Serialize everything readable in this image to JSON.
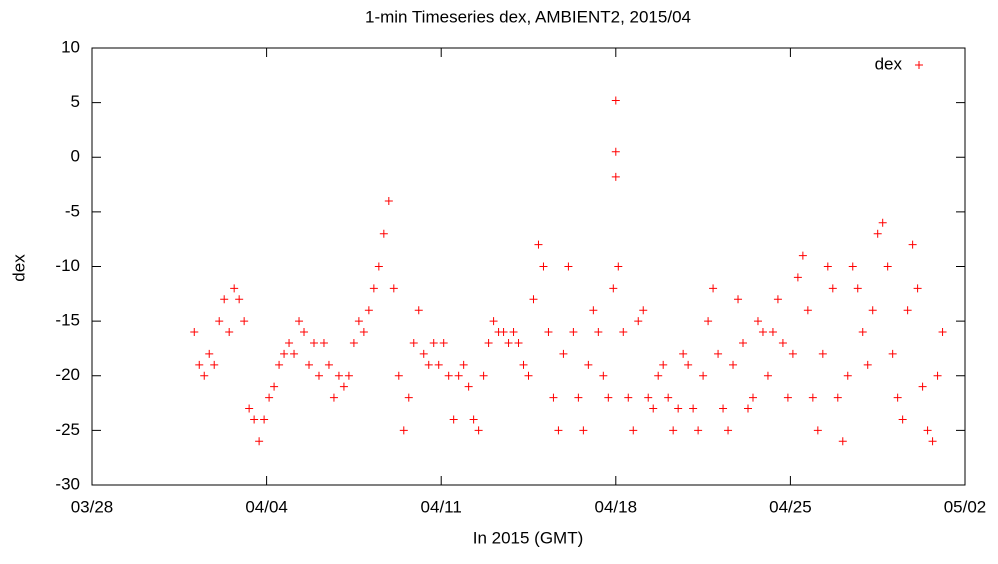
{
  "chart_data": {
    "type": "scatter",
    "title": "1-min Timeseries dex, AMBIENT2, 2015/04",
    "xlabel": "In 2015 (GMT)",
    "ylabel": "dex",
    "x": [
      4.1,
      4.3,
      4.5,
      4.7,
      4.9,
      5.1,
      5.3,
      5.5,
      5.7,
      5.9,
      6.1,
      6.3,
      6.5,
      6.7,
      6.9,
      7.1,
      7.3,
      7.5,
      7.7,
      7.9,
      8.1,
      8.3,
      8.5,
      8.7,
      8.9,
      9.1,
      9.3,
      9.5,
      9.7,
      9.9,
      10.1,
      10.3,
      10.5,
      10.7,
      10.9,
      11.1,
      11.3,
      11.5,
      11.7,
      11.9,
      12.1,
      12.3,
      12.5,
      12.7,
      12.9,
      13.1,
      13.3,
      13.5,
      13.7,
      13.9,
      14.1,
      14.3,
      14.5,
      14.7,
      14.9,
      15.1,
      15.3,
      15.5,
      15.7,
      15.9,
      16.1,
      16.3,
      16.5,
      16.7,
      16.9,
      17.1,
      17.3,
      17.5,
      17.7,
      17.9,
      18.1,
      18.3,
      18.5,
      18.7,
      18.9,
      19.1,
      19.3,
      19.5,
      19.7,
      19.9,
      20.1,
      20.3,
      20.5,
      20.7,
      20.9,
      21.0,
      21.0,
      21.0,
      21.1,
      21.3,
      21.5,
      21.7,
      21.9,
      22.1,
      22.3,
      22.5,
      22.7,
      22.9,
      23.1,
      23.3,
      23.5,
      23.7,
      23.9,
      24.1,
      24.3,
      24.5,
      24.7,
      24.9,
      25.1,
      25.3,
      25.5,
      25.7,
      25.9,
      26.1,
      26.3,
      26.5,
      26.7,
      26.9,
      27.1,
      27.3,
      27.5,
      27.7,
      27.9,
      28.1,
      28.3,
      28.5,
      28.7,
      28.9,
      29.1,
      29.3,
      29.5,
      29.7,
      29.9,
      30.1,
      30.3,
      30.5,
      30.7,
      30.9,
      31.1,
      31.3,
      31.5,
      31.7,
      31.9,
      32.1,
      32.3,
      32.5,
      32.7,
      32.9,
      33.1,
      33.3,
      33.5,
      33.7,
      33.9,
      34.1
    ],
    "series": [
      {
        "name": "dex",
        "color": "#ff0000",
        "values": [
          -16,
          -19,
          -20,
          -18,
          -19,
          -15,
          -13,
          -16,
          -12,
          -13,
          -15,
          -23,
          -24,
          -26,
          -24,
          -22,
          -21,
          -19,
          -18,
          -17,
          -18,
          -15,
          -16,
          -19,
          -17,
          -20,
          -17,
          -19,
          -22,
          -20,
          -21,
          -20,
          -17,
          -15,
          -16,
          -14,
          -12,
          -10,
          -7,
          -4,
          -12,
          -20,
          -25,
          -22,
          -17,
          -14,
          -18,
          -19,
          -17,
          -19,
          -17,
          -20,
          -24,
          -20,
          -19,
          -21,
          -24,
          -25,
          -20,
          -17,
          -15,
          -16,
          -16,
          -17,
          -16,
          -17,
          -19,
          -20,
          -13,
          -8,
          -10,
          -16,
          -22,
          -25,
          -18,
          -10,
          -16,
          -22,
          -25,
          -19,
          -14,
          -16,
          -20,
          -22,
          -12,
          5.2,
          0.5,
          -1.8,
          -10,
          -16,
          -22,
          -25,
          -15,
          -14,
          -22,
          -23,
          -20,
          -19,
          -22,
          -25,
          -23,
          -18,
          -19,
          -23,
          -25,
          -20,
          -15,
          -12,
          -18,
          -23,
          -25,
          -19,
          -13,
          -17,
          -23,
          -22,
          -15,
          -16,
          -20,
          -16,
          -13,
          -17,
          -22,
          -18,
          -11,
          -9,
          -14,
          -22,
          -25,
          -18,
          -10,
          -12,
          -22,
          -26,
          -20,
          -10,
          -12,
          -16,
          -19,
          -14,
          -7,
          -6,
          -10,
          -18,
          -22,
          -24,
          -14,
          -8,
          -12,
          -21,
          -25,
          -26,
          -20,
          -16
        ]
      }
    ],
    "xlim": [
      0,
      35
    ],
    "xticks": [
      {
        "value": 0,
        "label": "03/28"
      },
      {
        "value": 7,
        "label": "04/04"
      },
      {
        "value": 14,
        "label": "04/11"
      },
      {
        "value": 21,
        "label": "04/18"
      },
      {
        "value": 28,
        "label": "04/25"
      },
      {
        "value": 35,
        "label": "05/02"
      }
    ],
    "ylim": [
      -30,
      10
    ],
    "yticks": [
      -30,
      -25,
      -20,
      -15,
      -10,
      -5,
      0,
      5,
      10
    ],
    "legend": "top-right"
  }
}
